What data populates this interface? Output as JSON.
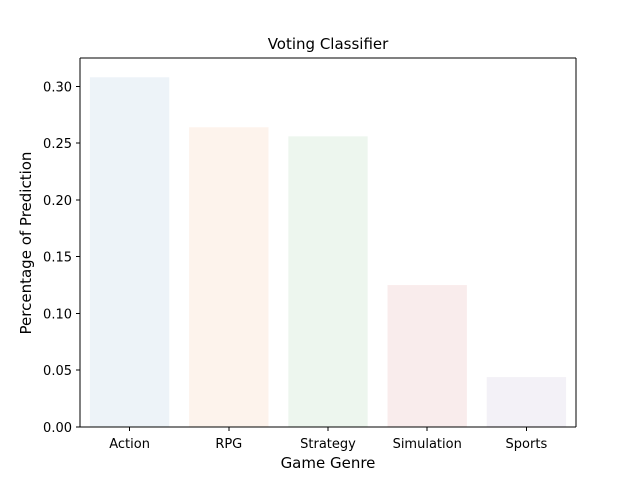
{
  "chart_data": {
    "type": "bar",
    "title": "Voting Classifier",
    "xlabel": "Game Genre",
    "ylabel": "Percentage of Prediction",
    "categories": [
      "Action",
      "RPG",
      "Strategy",
      "Simulation",
      "Sports"
    ],
    "values": [
      0.308,
      0.264,
      0.256,
      0.125,
      0.044
    ],
    "colors": [
      "#edf3f8",
      "#fdf3ec",
      "#edf6ee",
      "#f9ecec",
      "#f3f1f7"
    ],
    "ylim": [
      0,
      0.325
    ],
    "yticks": [
      "0.00",
      "0.05",
      "0.10",
      "0.15",
      "0.20",
      "0.25",
      "0.30"
    ],
    "grid": false,
    "legend": "none"
  }
}
